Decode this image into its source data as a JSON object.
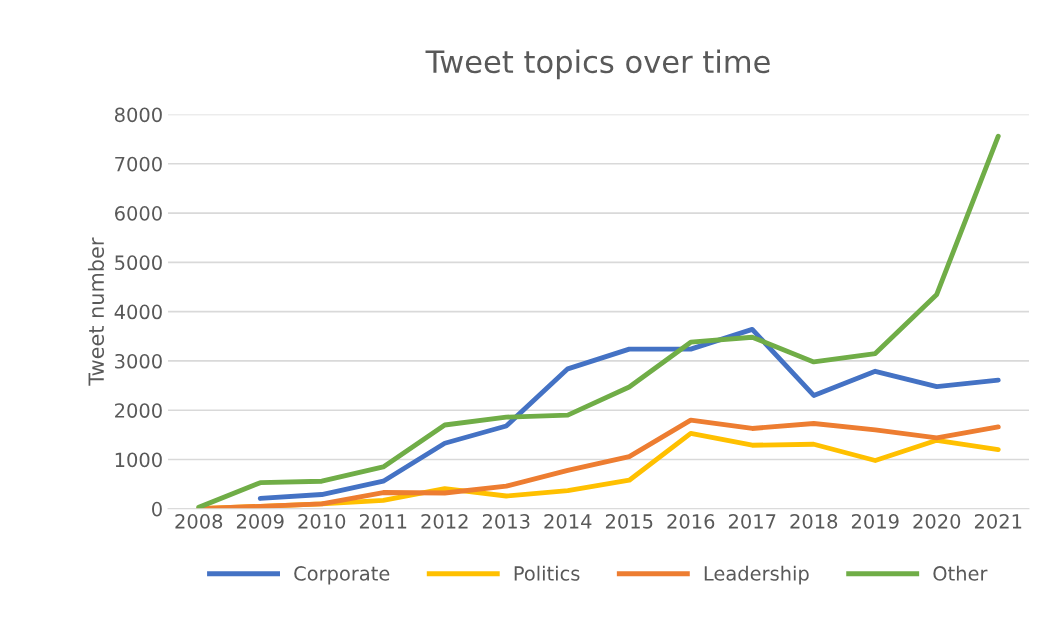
{
  "chart_data": {
    "type": "line",
    "title": "Tweet topics over time",
    "ylabel": "Tweet number",
    "categories": [
      "2008",
      "2009",
      "2010",
      "2011",
      "2012",
      "2013",
      "2014",
      "2015",
      "2016",
      "2017",
      "2018",
      "2019",
      "2020",
      "2021"
    ],
    "series": [
      {
        "name": "Corporate",
        "color": "#4472c4",
        "values": [
          null,
          210,
          290,
          560,
          1330,
          1680,
          2840,
          3240,
          3240,
          3640,
          2300,
          2790,
          2480,
          2610
        ]
      },
      {
        "name": "Politics",
        "color": "#ffc000",
        "values": [
          0,
          50,
          100,
          170,
          410,
          260,
          370,
          580,
          1530,
          1290,
          1310,
          980,
          1390,
          1200
        ]
      },
      {
        "name": "Leadership",
        "color": "#ed7d31",
        "values": [
          0,
          50,
          100,
          330,
          320,
          460,
          780,
          1060,
          1800,
          1630,
          1730,
          1600,
          1440,
          1660
        ]
      },
      {
        "name": "Other",
        "color": "#70ad47",
        "values": [
          30,
          530,
          560,
          850,
          1700,
          1860,
          1900,
          2470,
          3380,
          3480,
          2980,
          3150,
          4350,
          7560
        ]
      }
    ],
    "ylim": [
      0,
      8000
    ],
    "yticks": [
      0,
      1000,
      2000,
      3000,
      4000,
      5000,
      6000,
      7000,
      8000
    ],
    "grid": "y",
    "legend": "bottom",
    "marker": "none",
    "line_style": "solid"
  }
}
